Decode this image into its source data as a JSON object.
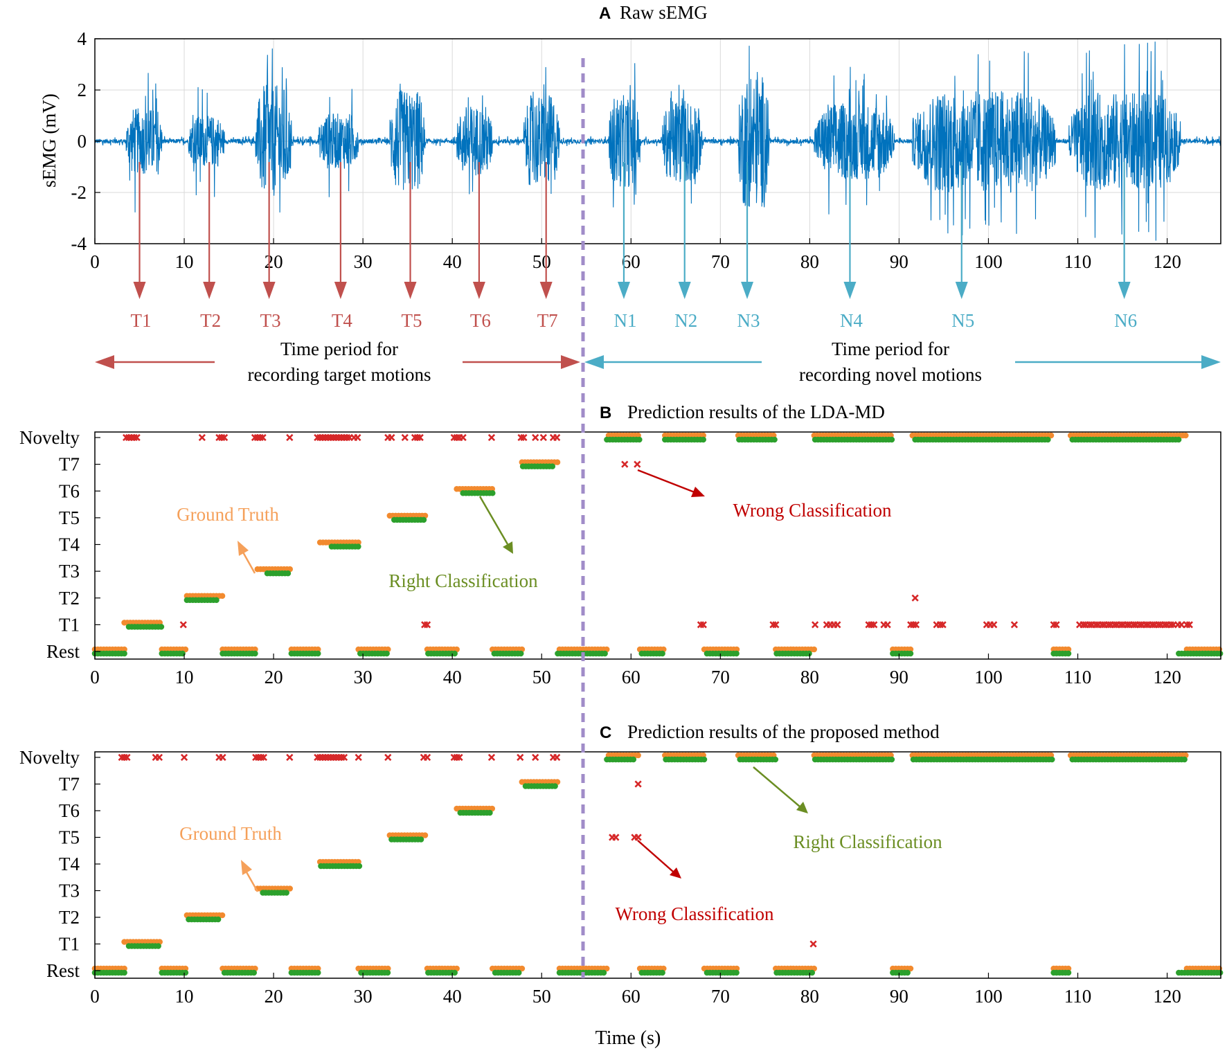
{
  "colors": {
    "signal": "#0072BD",
    "target": "#C0504D",
    "novel": "#4BACC6",
    "ground_truth": "#F5A05A",
    "ground_truth_fill": "#F28A2E",
    "right": "#2CA02C",
    "right_label": "#6B8E23",
    "wrong": "#D62728",
    "wrong_label": "#C00000",
    "divider": "#A08CC8",
    "grid": "#D9D9D9"
  },
  "labels": {
    "A": {
      "letter": "A",
      "title": "Raw sEMG"
    },
    "B": {
      "letter": "B",
      "title": "Prediction results of the LDA-MD"
    },
    "C": {
      "letter": "C",
      "title": "Prediction results of the proposed method"
    },
    "target_period_1": "Time period for",
    "target_period_2": "recording target motions",
    "novel_period_1": "Time period for",
    "novel_period_2": "recording novel motions",
    "ground_truth": "Ground Truth",
    "right": "Right Classification",
    "wrong": "Wrong Classification",
    "xlabel": "Time (s)",
    "ylabel_A": "sEMG (mV)"
  },
  "chart_data": [
    {
      "id": "A",
      "type": "line",
      "title": "Raw sEMG",
      "xlabel": "",
      "ylabel": "sEMG (mV)",
      "xlim": [
        0,
        126
      ],
      "ylim": [
        -4,
        4
      ],
      "xticks": [
        0,
        10,
        20,
        30,
        40,
        50,
        60,
        70,
        80,
        90,
        100,
        110,
        120
      ],
      "yticks": [
        -4,
        -2,
        0,
        2,
        4
      ],
      "grid": true,
      "divider_x": 55,
      "bursts": [
        {
          "start": 3.5,
          "end": 7.5,
          "amp": 1.3,
          "peak": 2.8
        },
        {
          "start": 10.5,
          "end": 14.5,
          "amp": 1.0,
          "peak": 2.2
        },
        {
          "start": 18,
          "end": 22,
          "amp": 2.2,
          "peak": 3.9
        },
        {
          "start": 25,
          "end": 29.5,
          "amp": 1.1,
          "peak": 2.3
        },
        {
          "start": 33,
          "end": 37,
          "amp": 2.0,
          "peak": 3.2
        },
        {
          "start": 40.5,
          "end": 44.5,
          "amp": 1.4,
          "peak": 2.7
        },
        {
          "start": 48,
          "end": 52,
          "amp": 1.8,
          "peak": 2.9
        },
        {
          "start": 57.5,
          "end": 61,
          "amp": 1.8,
          "peak": 3.3
        },
        {
          "start": 63.5,
          "end": 68,
          "amp": 1.7,
          "peak": 2.5
        },
        {
          "start": 72,
          "end": 75.5,
          "amp": 2.6,
          "peak": 3.9
        },
        {
          "start": 80.5,
          "end": 89.5,
          "amp": 1.5,
          "peak": 3.0
        },
        {
          "start": 91.5,
          "end": 107.5,
          "amp": 2.0,
          "peak": 4.0
        },
        {
          "start": 109,
          "end": 121.5,
          "amp": 1.9,
          "peak": 4.0
        }
      ],
      "markers": [
        {
          "label": "T1",
          "x": 5,
          "kind": "target"
        },
        {
          "label": "T2",
          "x": 12.8,
          "kind": "target"
        },
        {
          "label": "T3",
          "x": 19.5,
          "kind": "target"
        },
        {
          "label": "T4",
          "x": 27.5,
          "kind": "target"
        },
        {
          "label": "T5",
          "x": 35.3,
          "kind": "target"
        },
        {
          "label": "T6",
          "x": 43,
          "kind": "target"
        },
        {
          "label": "T7",
          "x": 50.5,
          "kind": "target"
        },
        {
          "label": "N1",
          "x": 59.2,
          "kind": "novel"
        },
        {
          "label": "N2",
          "x": 66,
          "kind": "novel"
        },
        {
          "label": "N3",
          "x": 73,
          "kind": "novel"
        },
        {
          "label": "N4",
          "x": 84.5,
          "kind": "novel"
        },
        {
          "label": "N5",
          "x": 97,
          "kind": "novel"
        },
        {
          "label": "N6",
          "x": 115.2,
          "kind": "novel"
        }
      ]
    },
    {
      "id": "B",
      "type": "scatter",
      "title": "Prediction results of the LDA-MD",
      "xlim": [
        0,
        126
      ],
      "xticks": [
        0,
        10,
        20,
        30,
        40,
        50,
        60,
        70,
        80,
        90,
        100,
        110,
        120
      ],
      "categories": [
        "Rest",
        "T1",
        "T2",
        "T3",
        "T4",
        "T5",
        "T6",
        "T7",
        "Novelty"
      ],
      "divider_x": 55,
      "ground_truth": [
        {
          "class": "Rest",
          "start": 0,
          "end": 3.3
        },
        {
          "class": "T1",
          "start": 3.3,
          "end": 7.5
        },
        {
          "class": "Rest",
          "start": 7.5,
          "end": 10.3
        },
        {
          "class": "T2",
          "start": 10.3,
          "end": 14.3
        },
        {
          "class": "Rest",
          "start": 14.3,
          "end": 18.2
        },
        {
          "class": "T3",
          "start": 18.2,
          "end": 22
        },
        {
          "class": "Rest",
          "start": 22,
          "end": 25.2
        },
        {
          "class": "T4",
          "start": 25.2,
          "end": 29.5
        },
        {
          "class": "Rest",
          "start": 29.5,
          "end": 33
        },
        {
          "class": "T5",
          "start": 33,
          "end": 37.2
        },
        {
          "class": "Rest",
          "start": 37.2,
          "end": 40.5
        },
        {
          "class": "T6",
          "start": 40.5,
          "end": 44.5
        },
        {
          "class": "Rest",
          "start": 44.5,
          "end": 47.8
        },
        {
          "class": "T7",
          "start": 47.8,
          "end": 52
        },
        {
          "class": "Rest",
          "start": 52,
          "end": 57.5
        },
        {
          "class": "Novelty",
          "start": 57.5,
          "end": 61
        },
        {
          "class": "Rest",
          "start": 61,
          "end": 63.8
        },
        {
          "class": "Novelty",
          "start": 63.8,
          "end": 68.2
        },
        {
          "class": "Rest",
          "start": 68.2,
          "end": 72
        },
        {
          "class": "Novelty",
          "start": 72,
          "end": 76.2
        },
        {
          "class": "Rest",
          "start": 76.2,
          "end": 80.5
        },
        {
          "class": "Novelty",
          "start": 80.5,
          "end": 89.3
        },
        {
          "class": "Rest",
          "start": 89.3,
          "end": 91.5
        },
        {
          "class": "Novelty",
          "start": 91.5,
          "end": 107.3
        },
        {
          "class": "Rest",
          "start": 107.3,
          "end": 109.2
        },
        {
          "class": "Novelty",
          "start": 109.2,
          "end": 122.2
        },
        {
          "class": "Rest",
          "start": 122.2,
          "end": 126
        }
      ],
      "right": [
        {
          "class": "Rest",
          "start": 0,
          "end": 3.3
        },
        {
          "class": "T1",
          "start": 3.8,
          "end": 7.5
        },
        {
          "class": "Rest",
          "start": 7.5,
          "end": 10
        },
        {
          "class": "T2",
          "start": 10.3,
          "end": 13.7
        },
        {
          "class": "Rest",
          "start": 14.3,
          "end": 18
        },
        {
          "class": "T3",
          "start": 19.3,
          "end": 21.8
        },
        {
          "class": "Rest",
          "start": 22,
          "end": 25
        },
        {
          "class": "T4",
          "start": 26.5,
          "end": 29.7
        },
        {
          "class": "Rest",
          "start": 29.7,
          "end": 32.8
        },
        {
          "class": "T5",
          "start": 33.5,
          "end": 36.8
        },
        {
          "class": "Rest",
          "start": 37.3,
          "end": 40.5
        },
        {
          "class": "T6",
          "start": 41.2,
          "end": 44.5
        },
        {
          "class": "Rest",
          "start": 44.7,
          "end": 47.7
        },
        {
          "class": "T7",
          "start": 47.9,
          "end": 51.5
        },
        {
          "class": "Rest",
          "start": 51.8,
          "end": 57.2
        },
        {
          "class": "Novelty",
          "start": 57.3,
          "end": 61
        },
        {
          "class": "Rest",
          "start": 61.2,
          "end": 63.8
        },
        {
          "class": "Novelty",
          "start": 63.8,
          "end": 68.3
        },
        {
          "class": "Rest",
          "start": 68.5,
          "end": 71.9
        },
        {
          "class": "Novelty",
          "start": 72.1,
          "end": 76.2
        },
        {
          "class": "Rest",
          "start": 76.3,
          "end": 80.2
        },
        {
          "class": "Novelty",
          "start": 80.6,
          "end": 89.2
        },
        {
          "class": "Rest",
          "start": 89.3,
          "end": 91.4
        },
        {
          "class": "Novelty",
          "start": 91.8,
          "end": 106.9
        },
        {
          "class": "Rest",
          "start": 107.3,
          "end": 109.1
        },
        {
          "class": "Novelty",
          "start": 109.4,
          "end": 121.5
        },
        {
          "class": "Rest",
          "start": 121.3,
          "end": 122.2
        },
        {
          "class": "Rest",
          "start": 122.3,
          "end": 126
        }
      ],
      "wrong": [
        {
          "class": "Novelty",
          "xs": [
            3.5,
            3.8,
            4.1,
            4.4,
            4.7,
            12,
            13.9,
            14.2,
            14.5,
            17.9,
            18.2,
            18.5,
            18.8,
            21.8,
            24.9,
            25.2,
            25.5,
            25.8,
            26.1,
            26.4,
            26.7,
            27.0,
            27.3,
            27.6,
            27.9,
            28.2,
            28.5,
            29.0,
            29.4,
            32.8,
            33.2,
            34.7,
            35.8,
            36.1,
            36.4,
            40.2,
            40.5,
            40.8,
            41.2,
            44.4,
            47.7,
            48.0,
            49.3,
            50.2,
            51.3,
            51.7
          ]
        },
        {
          "class": "T7",
          "xs": [
            59.3,
            60.7
          ]
        },
        {
          "class": "T2",
          "xs": [
            91.8
          ]
        },
        {
          "class": "T1",
          "xs": [
            9.9,
            36.9,
            37.2,
            67.8,
            68.1,
            75.9,
            76.2,
            80.6,
            81.9,
            82.3,
            82.7,
            83.1,
            86.6,
            86.9,
            87.2,
            88.3,
            88.7,
            91.3,
            91.6,
            91.9,
            94.2,
            94.6,
            94.9,
            99.8,
            100.2,
            100.6,
            102.9,
            107.3,
            107.6,
            110.2,
            110.6,
            110.9,
            111.3,
            111.6,
            112.0,
            112.3,
            112.7,
            113.0,
            113.4,
            113.7,
            114.1,
            114.4,
            114.8,
            115.1,
            115.5,
            115.8,
            116.2,
            116.5,
            116.9,
            117.2,
            117.6,
            117.9,
            118.3,
            118.6,
            119.0,
            119.3,
            119.7,
            120.0,
            120.4,
            120.7,
            121.2,
            121.6,
            122.2,
            122.5
          ]
        }
      ],
      "annotations": [
        {
          "text": "Ground Truth",
          "kind": "ground_truth"
        },
        {
          "text": "Right Classification",
          "kind": "right"
        },
        {
          "text": "Wrong Classification",
          "kind": "wrong"
        }
      ]
    },
    {
      "id": "C",
      "type": "scatter",
      "title": "Prediction results of the proposed method",
      "xlabel": "Time (s)",
      "xlim": [
        0,
        126
      ],
      "xticks": [
        0,
        10,
        20,
        30,
        40,
        50,
        60,
        70,
        80,
        90,
        100,
        110,
        120
      ],
      "categories": [
        "Rest",
        "T1",
        "T2",
        "T3",
        "T4",
        "T5",
        "T6",
        "T7",
        "Novelty"
      ],
      "divider_x": 55,
      "ground_truth": [
        {
          "class": "Rest",
          "start": 0,
          "end": 3.3
        },
        {
          "class": "T1",
          "start": 3.3,
          "end": 7.5
        },
        {
          "class": "Rest",
          "start": 7.5,
          "end": 10.3
        },
        {
          "class": "T2",
          "start": 10.3,
          "end": 14.3
        },
        {
          "class": "Rest",
          "start": 14.3,
          "end": 18.2
        },
        {
          "class": "T3",
          "start": 18.2,
          "end": 22
        },
        {
          "class": "Rest",
          "start": 22,
          "end": 25.2
        },
        {
          "class": "T4",
          "start": 25.2,
          "end": 29.5
        },
        {
          "class": "Rest",
          "start": 29.5,
          "end": 33
        },
        {
          "class": "T5",
          "start": 33,
          "end": 37.2
        },
        {
          "class": "Rest",
          "start": 37.2,
          "end": 40.5
        },
        {
          "class": "T6",
          "start": 40.5,
          "end": 44.5
        },
        {
          "class": "Rest",
          "start": 44.5,
          "end": 47.8
        },
        {
          "class": "T7",
          "start": 47.8,
          "end": 52
        },
        {
          "class": "Rest",
          "start": 52,
          "end": 57.5
        },
        {
          "class": "Novelty",
          "start": 57.5,
          "end": 61
        },
        {
          "class": "Rest",
          "start": 61,
          "end": 63.8
        },
        {
          "class": "Novelty",
          "start": 63.8,
          "end": 68.2
        },
        {
          "class": "Rest",
          "start": 68.2,
          "end": 72
        },
        {
          "class": "Novelty",
          "start": 72,
          "end": 76.2
        },
        {
          "class": "Rest",
          "start": 76.2,
          "end": 80.5
        },
        {
          "class": "Novelty",
          "start": 80.5,
          "end": 89.3
        },
        {
          "class": "Rest",
          "start": 89.3,
          "end": 91.5
        },
        {
          "class": "Novelty",
          "start": 91.5,
          "end": 107.3
        },
        {
          "class": "Rest",
          "start": 107.3,
          "end": 109.2
        },
        {
          "class": "Novelty",
          "start": 109.2,
          "end": 122.2
        },
        {
          "class": "Rest",
          "start": 122.2,
          "end": 126
        }
      ],
      "right": [
        {
          "class": "Rest",
          "start": 0,
          "end": 3.3
        },
        {
          "class": "T1",
          "start": 3.8,
          "end": 7.3
        },
        {
          "class": "Rest",
          "start": 7.5,
          "end": 10.2
        },
        {
          "class": "T2",
          "start": 10.5,
          "end": 13.9
        },
        {
          "class": "Rest",
          "start": 14.5,
          "end": 18
        },
        {
          "class": "T3",
          "start": 18.8,
          "end": 21.6
        },
        {
          "class": "Rest",
          "start": 22,
          "end": 25
        },
        {
          "class": "T4",
          "start": 25.3,
          "end": 29.6
        },
        {
          "class": "Rest",
          "start": 29.8,
          "end": 32.8
        },
        {
          "class": "T5",
          "start": 33.2,
          "end": 36.8
        },
        {
          "class": "Rest",
          "start": 37.3,
          "end": 40.5
        },
        {
          "class": "T6",
          "start": 40.9,
          "end": 44.3
        },
        {
          "class": "Rest",
          "start": 44.8,
          "end": 47.6
        },
        {
          "class": "T7",
          "start": 48.2,
          "end": 51.8
        },
        {
          "class": "Rest",
          "start": 52,
          "end": 57.2
        },
        {
          "class": "Novelty",
          "start": 57.3,
          "end": 60.5
        },
        {
          "class": "Rest",
          "start": 61.2,
          "end": 63.8
        },
        {
          "class": "Novelty",
          "start": 63.9,
          "end": 68.3
        },
        {
          "class": "Rest",
          "start": 68.5,
          "end": 72
        },
        {
          "class": "Novelty",
          "start": 72.2,
          "end": 76.2
        },
        {
          "class": "Rest",
          "start": 76.3,
          "end": 80.4
        },
        {
          "class": "Novelty",
          "start": 80.6,
          "end": 89.3
        },
        {
          "class": "Rest",
          "start": 89.3,
          "end": 91.2
        },
        {
          "class": "Novelty",
          "start": 91.6,
          "end": 107.2
        },
        {
          "class": "Rest",
          "start": 107.3,
          "end": 109
        },
        {
          "class": "Novelty",
          "start": 109.4,
          "end": 122.2
        },
        {
          "class": "Rest",
          "start": 121.3,
          "end": 122.2
        },
        {
          "class": "Rest",
          "start": 122.3,
          "end": 126
        }
      ],
      "wrong": [
        {
          "class": "Novelty",
          "xs": [
            3.0,
            3.3,
            3.6,
            6.8,
            7.2,
            10.0,
            13.9,
            14.3,
            18.0,
            18.3,
            18.6,
            18.9,
            21.8,
            24.9,
            25.2,
            25.5,
            25.8,
            26.1,
            26.4,
            26.7,
            27.0,
            27.3,
            27.6,
            27.9,
            29.5,
            32.8,
            36.8,
            37.2,
            40.2,
            40.5,
            40.8,
            44.4,
            47.6,
            49.3,
            51.3,
            51.7
          ]
        },
        {
          "class": "T7",
          "xs": [
            60.8
          ]
        },
        {
          "class": "T5",
          "xs": [
            57.9,
            58.3,
            60.4,
            60.8
          ]
        },
        {
          "class": "T1",
          "xs": [
            80.4
          ]
        }
      ],
      "annotations": [
        {
          "text": "Ground Truth",
          "kind": "ground_truth"
        },
        {
          "text": "Right Classification",
          "kind": "right"
        },
        {
          "text": "Wrong Classification",
          "kind": "wrong"
        }
      ]
    }
  ]
}
